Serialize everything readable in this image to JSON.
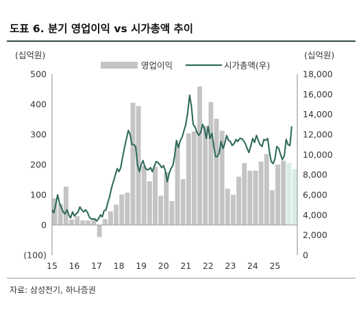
{
  "figure": {
    "title": "도표 6. 분기 영업이익 vs 시가총액 추이",
    "source": "자료: 삼성전기, 하나증권"
  },
  "colors": {
    "bar": "#c4c4c4",
    "bar_forecast": "#d6ece4",
    "line": "#2e6a5c",
    "rule": "#2f4a44"
  },
  "chart_data": {
    "type": "bar+line",
    "left_unit": "(십억원)",
    "right_unit": "(십억원)",
    "y_left": {
      "min": -100,
      "max": 500,
      "ticks": [
        -100,
        0,
        100,
        200,
        300,
        400,
        500
      ],
      "tick_labels": [
        "(100)",
        "0",
        "100",
        "200",
        "300",
        "400",
        "500"
      ]
    },
    "y_right": {
      "min": 0,
      "max": 18000,
      "ticks": [
        0,
        2000,
        4000,
        6000,
        8000,
        10000,
        12000,
        14000,
        16000,
        18000
      ],
      "tick_labels": [
        "0",
        "2,000",
        "4,000",
        "6,000",
        "8,000",
        "10,000",
        "12,000",
        "14,000",
        "16,000",
        "18,000"
      ]
    },
    "x_axis": {
      "start": 2015.0,
      "end": 2026.0,
      "tick_labels": [
        "15",
        "16",
        "17",
        "18",
        "19",
        "20",
        "21",
        "22",
        "23",
        "24",
        "25"
      ]
    },
    "legend": {
      "position": "top-center",
      "entries": [
        "영업이익",
        "시가총액(우)"
      ]
    },
    "series": [
      {
        "name": "영업이익",
        "type": "bar",
        "axis": "left",
        "x": [
          "1Q15",
          "2Q15",
          "3Q15",
          "4Q15",
          "1Q16",
          "2Q16",
          "3Q16",
          "4Q16",
          "1Q17",
          "2Q17",
          "3Q17",
          "4Q17",
          "1Q18",
          "2Q18",
          "3Q18",
          "4Q18",
          "1Q19",
          "2Q19",
          "3Q19",
          "4Q19",
          "1Q20",
          "2Q20",
          "3Q20",
          "4Q20",
          "1Q21",
          "2Q21",
          "3Q21",
          "4Q21",
          "1Q22",
          "2Q22",
          "3Q22",
          "4Q22",
          "1Q23",
          "2Q23",
          "3Q23",
          "4Q23",
          "1Q24",
          "2Q24",
          "3Q24",
          "4Q24",
          "1Q25",
          "2Q25",
          "3Q25",
          "4Q25"
        ],
        "values": [
          88,
          70,
          127,
          18,
          29,
          15,
          15,
          20,
          -40,
          20,
          45,
          67,
          101,
          107,
          405,
          394,
          196,
          145,
          192,
          97,
          175,
          79,
          266,
          152,
          303,
          310,
          459,
          328,
          407,
          352,
          312,
          120,
          100,
          160,
          205,
          180,
          180,
          210,
          235,
          115,
          200,
          213,
          205,
          185
        ],
        "forecast_from_index": 42
      },
      {
        "name": "시가총액(우)",
        "type": "line",
        "axis": "right",
        "x": [
          2015.0,
          2015.08,
          2015.17,
          2015.25,
          2015.33,
          2015.42,
          2015.5,
          2015.58,
          2015.67,
          2015.75,
          2015.83,
          2015.92,
          2016.0,
          2016.08,
          2016.17,
          2016.25,
          2016.33,
          2016.42,
          2016.5,
          2016.58,
          2016.67,
          2016.75,
          2016.83,
          2016.92,
          2017.0,
          2017.08,
          2017.17,
          2017.25,
          2017.33,
          2017.42,
          2017.5,
          2017.58,
          2017.67,
          2017.75,
          2017.83,
          2017.92,
          2018.0,
          2018.08,
          2018.17,
          2018.25,
          2018.33,
          2018.42,
          2018.5,
          2018.58,
          2018.67,
          2018.75,
          2018.83,
          2018.92,
          2019.0,
          2019.08,
          2019.17,
          2019.25,
          2019.33,
          2019.42,
          2019.5,
          2019.58,
          2019.67,
          2019.75,
          2019.83,
          2019.92,
          2020.0,
          2020.08,
          2020.17,
          2020.25,
          2020.33,
          2020.42,
          2020.5,
          2020.58,
          2020.67,
          2020.75,
          2020.83,
          2020.92,
          2021.0,
          2021.08,
          2021.17,
          2021.25,
          2021.33,
          2021.42,
          2021.5,
          2021.58,
          2021.67,
          2021.75,
          2021.83,
          2021.92,
          2022.0,
          2022.08,
          2022.17,
          2022.25,
          2022.33,
          2022.42,
          2022.5,
          2022.58,
          2022.67,
          2022.75,
          2022.83,
          2022.92,
          2023.0,
          2023.08,
          2023.17,
          2023.25,
          2023.33,
          2023.42,
          2023.5,
          2023.58,
          2023.67,
          2023.75,
          2023.83,
          2023.92,
          2024.0,
          2024.08,
          2024.17,
          2024.25,
          2024.33,
          2024.42,
          2024.5,
          2024.58,
          2024.67,
          2024.75,
          2024.83,
          2024.92,
          2025.0,
          2025.08,
          2025.17,
          2025.25,
          2025.33,
          2025.42,
          2025.5,
          2025.58,
          2025.67,
          2025.75
        ],
        "values": [
          4500,
          4200,
          5100,
          6000,
          5200,
          4700,
          4300,
          4100,
          4500,
          4000,
          3700,
          4300,
          3900,
          4100,
          4300,
          4800,
          4500,
          4300,
          4500,
          4300,
          3800,
          3600,
          3600,
          3600,
          3400,
          3600,
          4000,
          3800,
          4400,
          4500,
          5200,
          5800,
          6700,
          7300,
          7900,
          8600,
          8300,
          8700,
          9800,
          10700,
          11500,
          12400,
          12000,
          11000,
          11000,
          10800,
          9000,
          8300,
          9000,
          9400,
          8700,
          8500,
          8500,
          8700,
          8300,
          8800,
          9300,
          9200,
          9000,
          8700,
          8900,
          8400,
          7300,
          8100,
          8600,
          8900,
          9900,
          11400,
          10700,
          11400,
          11700,
          12400,
          13000,
          14100,
          15900,
          14800,
          13000,
          12700,
          12200,
          11900,
          12200,
          13000,
          12600,
          11600,
          12800,
          11600,
          12100,
          10900,
          9800,
          9800,
          10200,
          11300,
          10600,
          11100,
          11900,
          11400,
          11300,
          10900,
          11100,
          11500,
          11300,
          11600,
          11600,
          11400,
          11100,
          10600,
          10200,
          10900,
          11600,
          11200,
          11900,
          11400,
          11000,
          10800,
          11500,
          11400,
          11600,
          10300,
          9300,
          9100,
          9600,
          10800,
          10600,
          10000,
          9500,
          9900,
          11500,
          11000,
          10900,
          12800
        ]
      }
    ]
  }
}
